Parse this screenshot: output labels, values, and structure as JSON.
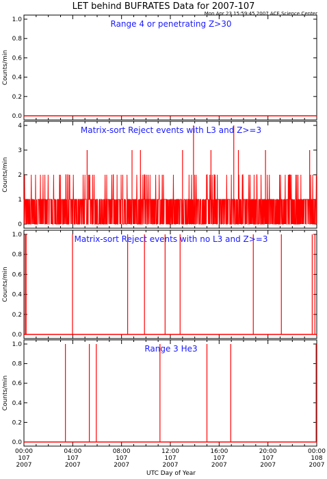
{
  "title": "LET behind BUFRATES Data for 2007-107",
  "timestamp": "Mon Apr 23 15:59:45 2007 ACE Science Center",
  "xlabel": "UTC Day of Year",
  "x_ticks": [
    {
      "time": "00:00",
      "day": "107",
      "year": "2007"
    },
    {
      "time": "04:00",
      "day": "107",
      "year": "2007"
    },
    {
      "time": "08:00",
      "day": "107",
      "year": "2007"
    },
    {
      "time": "12:00",
      "day": "107",
      "year": "2007"
    },
    {
      "time": "16:00",
      "day": "107",
      "year": "2007"
    },
    {
      "time": "20:00",
      "day": "107",
      "year": "2007"
    },
    {
      "time": "00:00",
      "day": "108",
      "year": "2007"
    }
  ],
  "colors": {
    "trace": "#ff0000",
    "panel_title": "#1a1aff",
    "axes": "#000000"
  },
  "chart_data": [
    {
      "type": "line",
      "title": "Range 4 or  penetrating Z>30",
      "ylabel": "Counts/min",
      "ylim": [
        0,
        1
      ],
      "yticks": [
        "0.0",
        "0.2",
        "0.4",
        "0.6",
        "0.8",
        "1.0"
      ],
      "xrange_hours": [
        0,
        24
      ],
      "baseline": 0,
      "spikes": []
    },
    {
      "type": "line",
      "title": "Matrix-sort Reject events with L3 and Z>=3",
      "ylabel": "Counts/min",
      "ylim": [
        0,
        4
      ],
      "yticks": [
        "0",
        "1",
        "2",
        "3",
        "4"
      ],
      "xrange_hours": [
        0,
        24
      ],
      "baseline": 1,
      "dense": true,
      "spikes": [
        {
          "hour": 5.18,
          "value": 3
        },
        {
          "hour": 8.86,
          "value": 3
        },
        {
          "hour": 9.55,
          "value": 3
        },
        {
          "hour": 13.0,
          "value": 3
        },
        {
          "hour": 13.9,
          "value": 4
        },
        {
          "hour": 15.33,
          "value": 3
        },
        {
          "hour": 17.2,
          "value": 4
        },
        {
          "hour": 17.58,
          "value": 3
        },
        {
          "hour": 19.8,
          "value": 3
        },
        {
          "hour": 23.42,
          "value": 3
        }
      ]
    },
    {
      "type": "line",
      "title": "Matrix-sort Reject events with no L3 and Z>=3",
      "ylabel": "Counts/min",
      "ylim": [
        0,
        1
      ],
      "yticks": [
        "0.0",
        "0.2",
        "0.4",
        "0.6",
        "0.8",
        "1.0"
      ],
      "xrange_hours": [
        0,
        24
      ],
      "baseline": 0,
      "spikes": [
        {
          "hour": 0.1,
          "value": 1
        },
        {
          "hour": 0.18,
          "value": 1
        },
        {
          "hour": 3.98,
          "value": 1
        },
        {
          "hour": 8.5,
          "value": 1
        },
        {
          "hour": 9.88,
          "value": 1
        },
        {
          "hour": 11.57,
          "value": 1
        },
        {
          "hour": 12.8,
          "value": 1
        },
        {
          "hour": 18.8,
          "value": 1
        },
        {
          "hour": 21.1,
          "value": 1
        },
        {
          "hour": 23.63,
          "value": 1
        },
        {
          "hour": 23.85,
          "value": 1
        }
      ]
    },
    {
      "type": "line",
      "title": "Range 3 He3",
      "ylabel": "Counts/min",
      "ylim": [
        0,
        1
      ],
      "yticks": [
        "0.0",
        "0.2",
        "0.4",
        "0.6",
        "0.8",
        "1.0"
      ],
      "xrange_hours": [
        0,
        24
      ],
      "baseline": 0,
      "spikes": [
        {
          "hour": 3.4,
          "value": 1
        },
        {
          "hour": 5.36,
          "value": 1
        },
        {
          "hour": 5.93,
          "value": 1
        },
        {
          "hour": 11.15,
          "value": 1
        },
        {
          "hour": 15.0,
          "value": 1
        },
        {
          "hour": 16.95,
          "value": 1
        },
        {
          "hour": 23.95,
          "value": 1
        }
      ]
    }
  ]
}
